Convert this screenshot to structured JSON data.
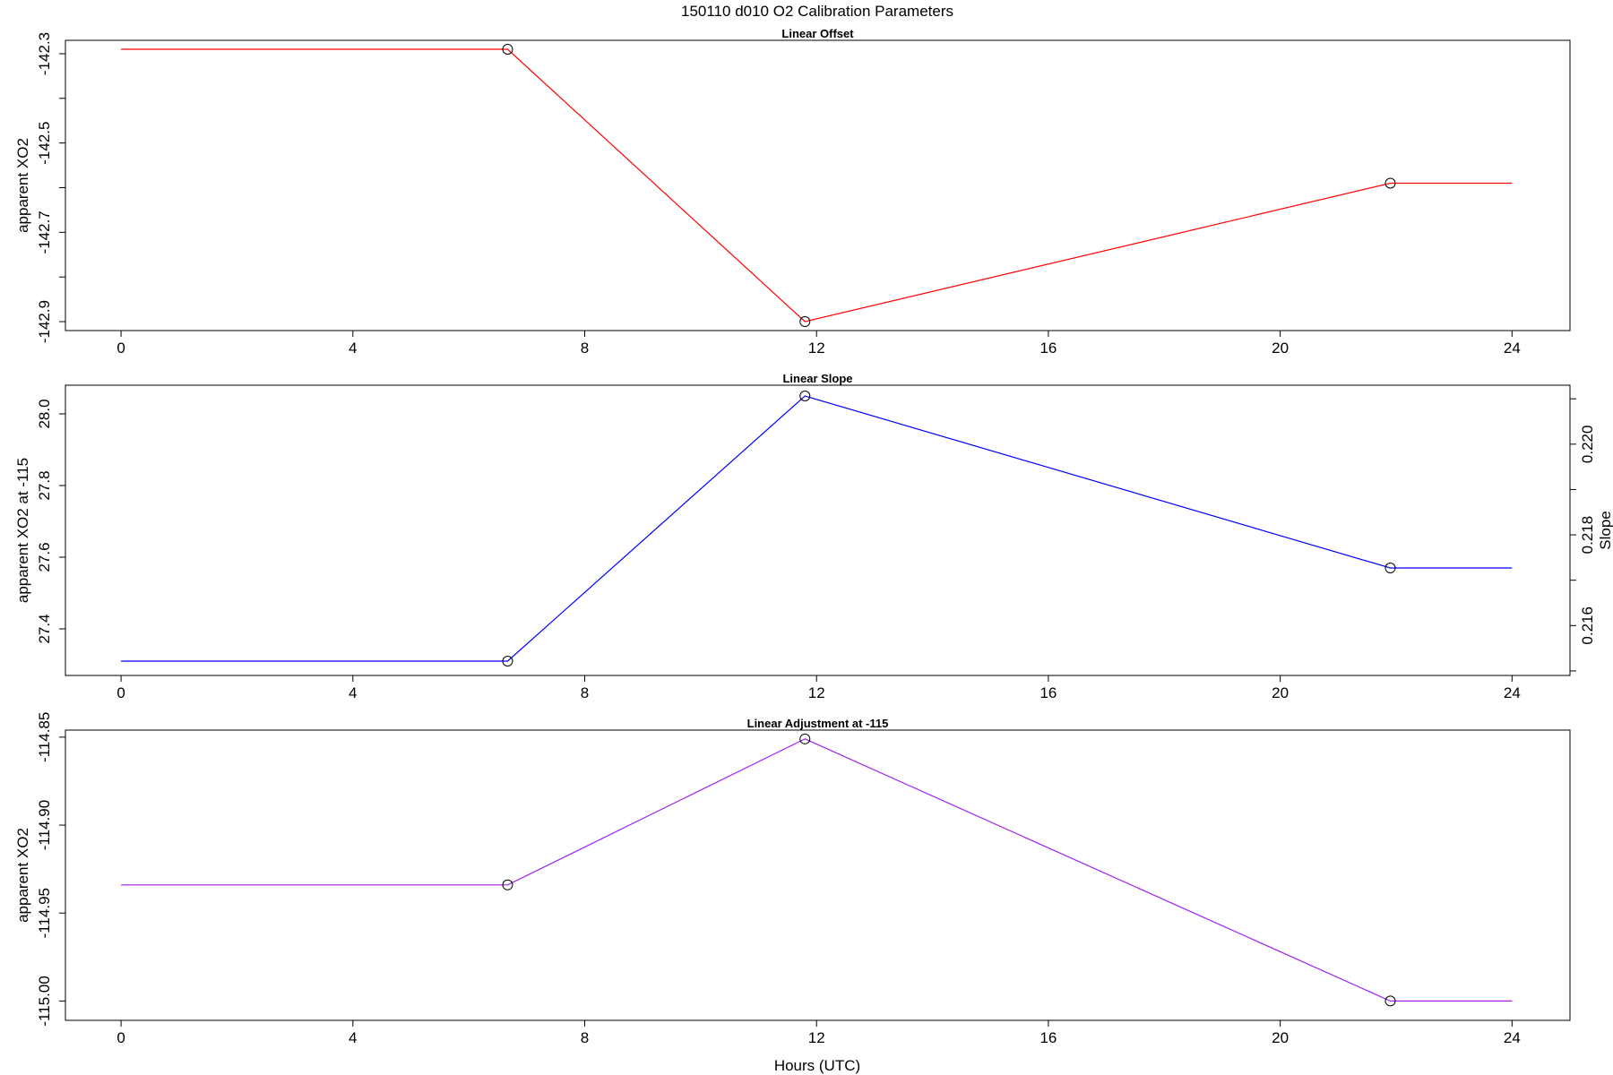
{
  "figure": {
    "title": "150110   d010   O2 Calibration Parameters",
    "xlabel": "Hours (UTC)"
  },
  "chart_data": [
    {
      "type": "line",
      "title": "Linear Offset",
      "xlabel": "",
      "ylabel": "apparent XO2",
      "xlim": [
        -0.96,
        25.0
      ],
      "ylim": [
        -142.92,
        -142.27
      ],
      "xticks": [
        "0",
        "4",
        "8",
        "12",
        "16",
        "20",
        "24"
      ],
      "yticks": [
        "-142.3",
        "-142.5",
        "-142.7",
        "-142.9"
      ],
      "yminor": [
        -142.4,
        -142.6,
        -142.8
      ],
      "color": "#ff0000",
      "x": [
        0,
        6.67,
        11.8,
        21.9,
        24.0
      ],
      "y": [
        -142.29,
        -142.29,
        -142.9,
        -142.59,
        -142.59
      ],
      "markers": [
        1,
        2,
        3
      ]
    },
    {
      "type": "line",
      "title": "Linear Slope",
      "xlabel": "",
      "ylabel": "apparent XO2 at -115",
      "ylabel_right": "Slope",
      "xlim": [
        -0.96,
        25.0
      ],
      "ylim": [
        27.27,
        28.08
      ],
      "xticks": [
        "0",
        "4",
        "8",
        "12",
        "16",
        "20",
        "24"
      ],
      "yticks": [
        "27.4",
        "27.6",
        "27.8",
        "28.0"
      ],
      "yticks_right": [
        "0.216",
        "0.218",
        "0.220"
      ],
      "yminor_right": [
        0.215,
        0.217,
        0.219,
        0.221
      ],
      "right_ylim": [
        0.2149,
        0.2213
      ],
      "color": "#0000ff",
      "x": [
        0,
        6.67,
        11.8,
        21.9,
        24.0
      ],
      "y": [
        27.31,
        27.31,
        28.05,
        27.57,
        27.57
      ],
      "markers": [
        1,
        2,
        3
      ]
    },
    {
      "type": "line",
      "title": "Linear Adjustment at -115",
      "xlabel": "",
      "ylabel": "apparent XO2",
      "xlim": [
        -0.96,
        25.0
      ],
      "ylim": [
        -115.011,
        -114.846
      ],
      "xticks": [
        "0",
        "4",
        "8",
        "12",
        "16",
        "20",
        "24"
      ],
      "yticks": [
        "-114.85",
        "-114.90",
        "-114.95",
        "-115.00"
      ],
      "color": "#a020f0",
      "x": [
        0,
        6.67,
        11.8,
        21.9,
        24.0
      ],
      "y": [
        -114.934,
        -114.934,
        -114.851,
        -115.0,
        -115.0
      ],
      "markers": [
        1,
        2,
        3
      ]
    }
  ]
}
